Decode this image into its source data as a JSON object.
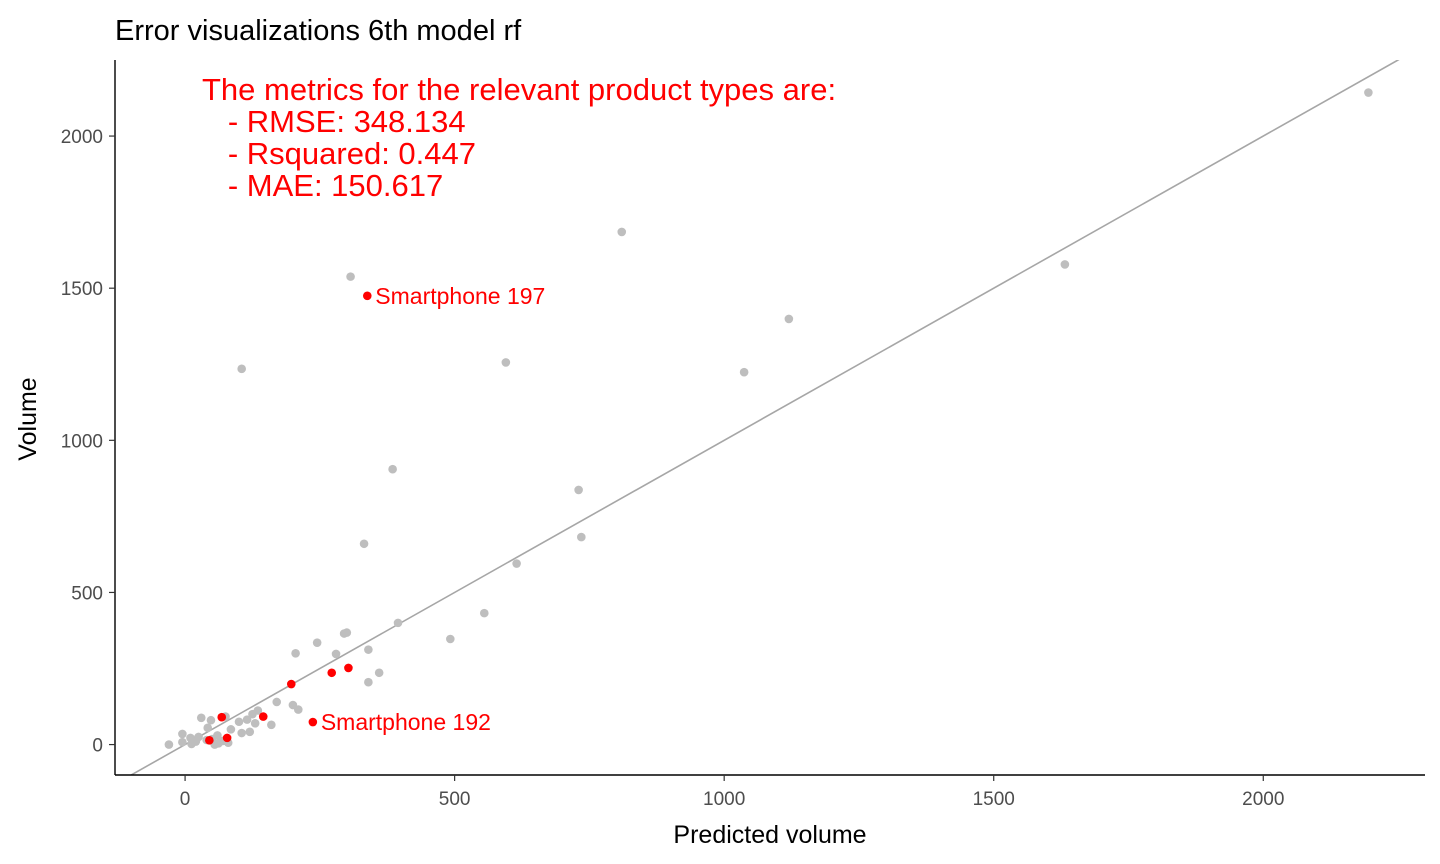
{
  "chart_data": {
    "type": "scatter",
    "title": "Error visualizations 6th model rf",
    "xlabel": "Predicted volume",
    "ylabel": "Volume",
    "xlim": [
      -130,
      2300
    ],
    "ylim": [
      -100,
      2250
    ],
    "x_ticks": [
      0,
      500,
      1000,
      1500,
      2000
    ],
    "y_ticks": [
      0,
      500,
      1000,
      1500,
      2000
    ],
    "grid": false,
    "reference_line": {
      "slope": 1,
      "intercept": 0,
      "color": "#a6a6a6"
    },
    "annotation_lines": [
      "The metrics for the relevant product types are:",
      "   - RMSE: 348.134",
      "   - Rsquared: 0.447",
      "   - MAE: 150.617"
    ],
    "series": [
      {
        "color": "#bebebe",
        "points": [
          [
            2195,
            2143
          ],
          [
            810,
            1685
          ],
          [
            1632,
            1578
          ],
          [
            307,
            1538
          ],
          [
            1120,
            1399
          ],
          [
            595,
            1256
          ],
          [
            105,
            1235
          ],
          [
            1037,
            1224
          ],
          [
            385,
            905
          ],
          [
            730,
            837
          ],
          [
            735,
            682
          ],
          [
            332,
            660
          ],
          [
            615,
            595
          ],
          [
            555,
            432
          ],
          [
            395,
            400
          ],
          [
            300,
            368
          ],
          [
            295,
            365
          ],
          [
            492,
            347
          ],
          [
            245,
            335
          ],
          [
            340,
            312
          ],
          [
            205,
            300
          ],
          [
            280,
            298
          ],
          [
            360,
            236
          ],
          [
            340,
            205
          ],
          [
            170,
            140
          ],
          [
            200,
            130
          ],
          [
            210,
            115
          ],
          [
            135,
            112
          ],
          [
            125,
            100
          ],
          [
            75,
            92
          ],
          [
            30,
            88
          ],
          [
            115,
            82
          ],
          [
            48,
            80
          ],
          [
            100,
            75
          ],
          [
            130,
            70
          ],
          [
            160,
            65
          ],
          [
            42,
            55
          ],
          [
            85,
            50
          ],
          [
            120,
            42
          ],
          [
            105,
            38
          ],
          [
            -5,
            35
          ],
          [
            60,
            30
          ],
          [
            25,
            25
          ],
          [
            10,
            22
          ],
          [
            50,
            18
          ],
          [
            40,
            15
          ],
          [
            70,
            12
          ],
          [
            20,
            10
          ],
          [
            -5,
            8
          ],
          [
            80,
            6
          ],
          [
            62,
            4
          ],
          [
            12,
            2
          ],
          [
            55,
            0
          ],
          [
            -30,
            0
          ]
        ]
      },
      {
        "color": "#ff0000",
        "points": [
          [
            338,
            1475
          ],
          [
            303,
            252
          ],
          [
            272,
            236
          ],
          [
            197,
            199
          ],
          [
            145,
            92
          ],
          [
            237,
            74
          ],
          [
            68,
            90
          ],
          [
            78,
            22
          ],
          [
            45,
            14
          ]
        ]
      }
    ],
    "labels": [
      {
        "text": "Smartphone 197",
        "x": 338,
        "y": 1475
      },
      {
        "text": "Smartphone 192",
        "x": 237,
        "y": 74
      }
    ]
  }
}
